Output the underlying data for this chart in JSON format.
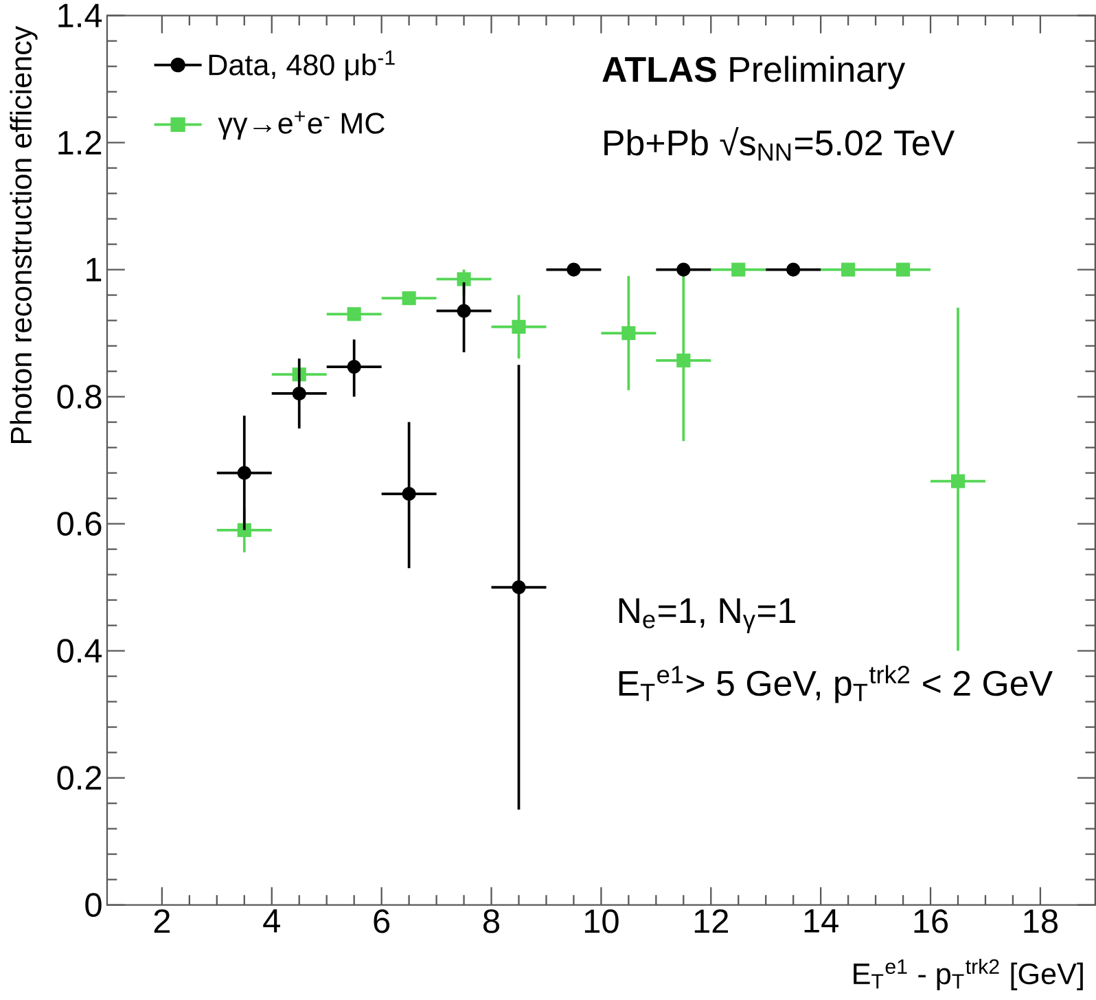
{
  "chart_data": {
    "type": "scatter",
    "xlabel": "E$_{T}$$^{e1}$ - p$_{T}$$^{trk2}$ [GeV]",
    "ylabel": "Photon reconstruction efficiency",
    "x": [
      3.5,
      4.5,
      5.5,
      6.5,
      7.5,
      8.5,
      9.5,
      10.5,
      11.5,
      12.5,
      13.5,
      14.5,
      15.5,
      16.5
    ],
    "series": [
      {
        "name": "Data, 480 μb$^{-1}$",
        "color": "#000000",
        "marker": "circle",
        "values": [
          0.68,
          0.805,
          0.847,
          0.647,
          0.935,
          0.5,
          1.0,
          null,
          1.0,
          null,
          1.0,
          null,
          null,
          null
        ],
        "errors": [
          [
            0.59,
            0.77
          ],
          [
            0.75,
            0.86
          ],
          [
            0.8,
            0.89
          ],
          [
            0.53,
            0.76
          ],
          [
            0.87,
            0.98
          ],
          [
            0.15,
            0.85
          ],
          null,
          null,
          null,
          null,
          null,
          null,
          null,
          null
        ],
        "xerrors": [
          0.5,
          0.5,
          0.5,
          0.5,
          0.5,
          0.5,
          0.5,
          null,
          0.5,
          null,
          0.5,
          null,
          null,
          null
        ]
      },
      {
        "name": "γγ→e$^{+}$e$^{-}$ MC",
        "color": "#55d655",
        "marker": "square",
        "values": [
          0.59,
          0.835,
          0.93,
          0.955,
          0.985,
          0.91,
          null,
          0.9,
          0.857,
          1.0,
          null,
          1.0,
          1.0,
          0.667
        ],
        "errors": [
          [
            0.555,
            0.625
          ],
          null,
          null,
          null,
          [
            0.96,
            1.0
          ],
          [
            0.86,
            0.96
          ],
          null,
          [
            0.81,
            0.99
          ],
          [
            0.73,
            0.99
          ],
          null,
          null,
          null,
          null,
          [
            0.4,
            0.94
          ]
        ],
        "xerrors": [
          0.5,
          0.5,
          0.5,
          0.5,
          0.5,
          0.5,
          null,
          0.5,
          0.5,
          0.5,
          null,
          0.5,
          0.5,
          0.5
        ]
      }
    ],
    "xlim": [
      1,
      19
    ],
    "xticks": [
      2,
      4,
      6,
      8,
      10,
      12,
      14,
      16,
      18
    ],
    "ylim": [
      0,
      1.4
    ],
    "yticks": [
      0,
      0.2,
      0.4,
      0.6,
      0.8,
      1,
      1.2,
      1.4
    ],
    "legend": "top left",
    "grid": false,
    "annotations": [
      "**ATLAS** Preliminary",
      "Pb+Pb √s$_{NN}$=5.02 TeV",
      "N$_{e}$=1, N$_{γ}$=1",
      "E$_{T}$$^{e1}$> 5 GeV, p$_{T}$$^{trk2}$ < 2 GeV"
    ]
  }
}
